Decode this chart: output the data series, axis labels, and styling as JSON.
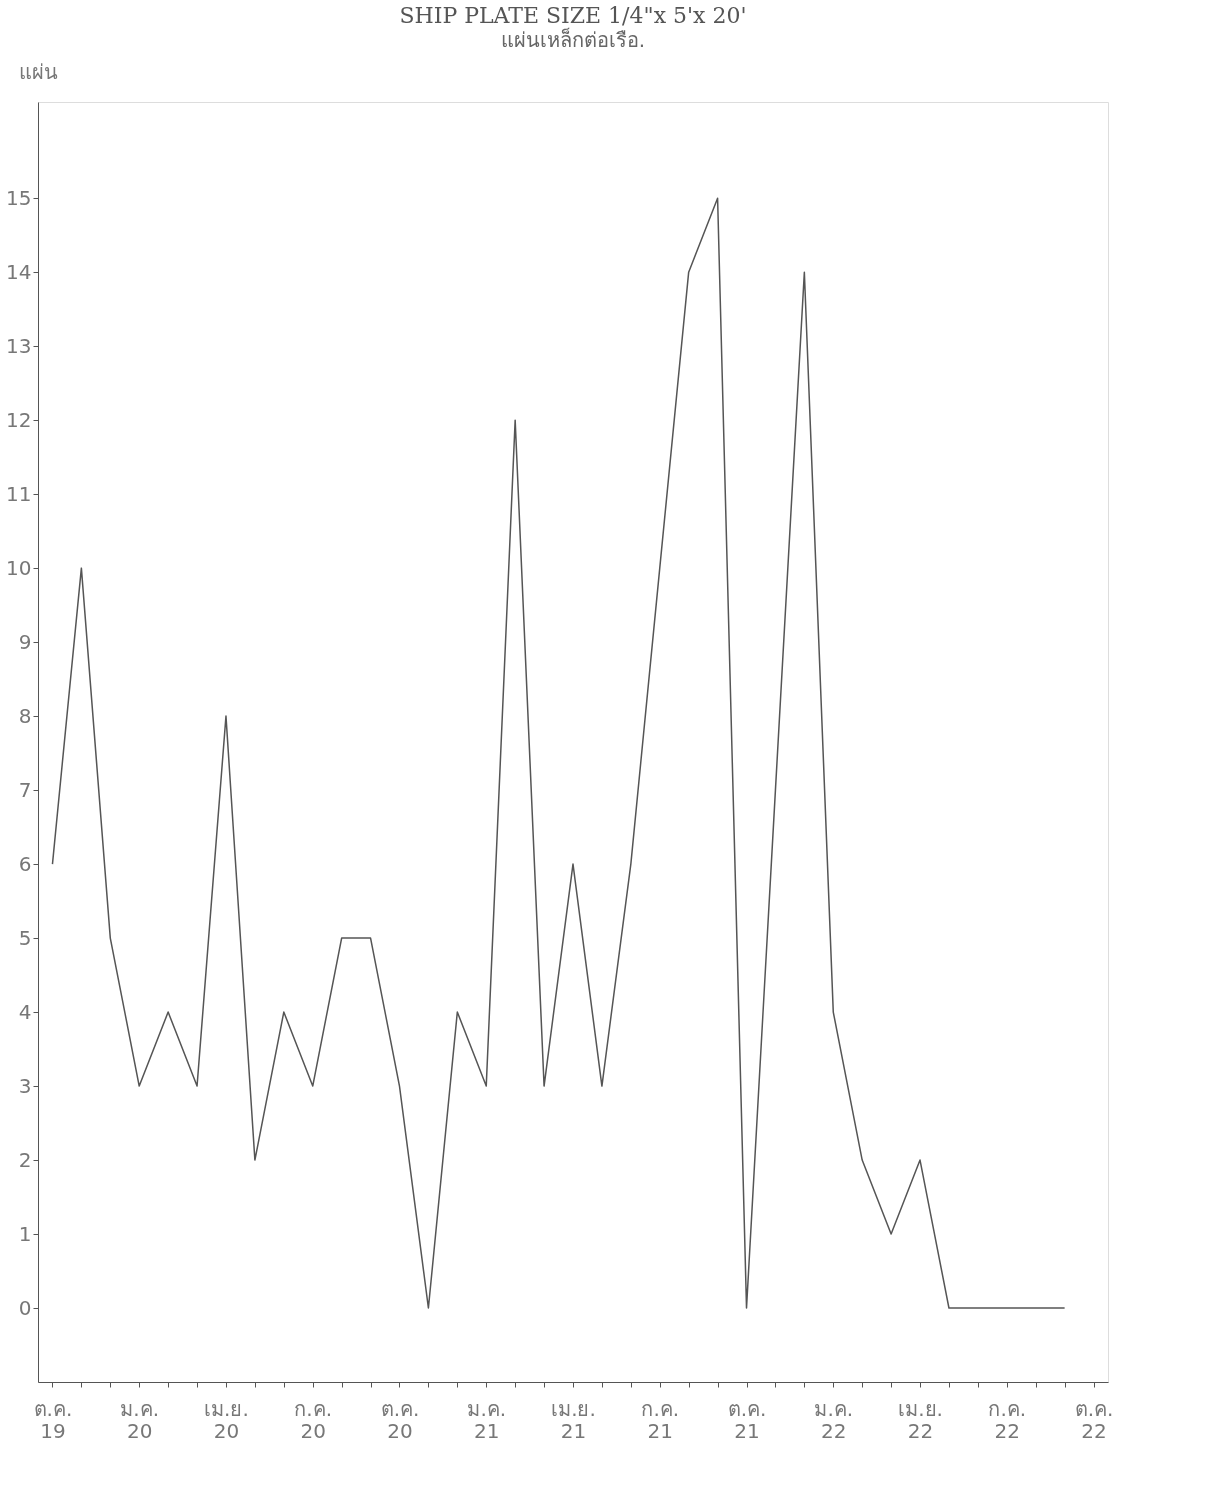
{
  "chart_data": {
    "type": "line",
    "title": "SHIP PLATE SIZE 1/4\"x 5'x 20'",
    "subtitle": "แผ่นเหล็กต่อเรือ.",
    "ylabel": "แผ่น",
    "categories": [
      "ต.ค. 19",
      null,
      null,
      "ม.ค. 20",
      null,
      null,
      "เม.ย. 20",
      null,
      null,
      "ก.ค. 20",
      null,
      null,
      "ต.ค. 20",
      null,
      null,
      "ม.ค. 21",
      null,
      null,
      "เม.ย. 21",
      null,
      null,
      "ก.ค. 21",
      null,
      null,
      "ต.ค. 21",
      null,
      null,
      "ม.ค. 22",
      null,
      null,
      "เม.ย. 22",
      null,
      null,
      "ก.ค. 22",
      null,
      null,
      "ต.ค. 22"
    ],
    "series": [
      {
        "color": "#555555",
        "values": [
          6,
          10,
          5,
          3,
          4,
          3,
          8,
          2,
          4,
          3,
          5,
          5,
          3,
          0,
          4,
          3,
          12,
          3,
          6,
          3,
          6,
          10,
          14,
          15,
          0,
          7,
          14,
          4,
          2,
          1,
          2,
          0,
          0,
          0,
          0,
          0,
          null
        ]
      }
    ],
    "ylim": [
      -1,
      16.3
    ],
    "yticks": [
      0,
      1,
      2,
      3,
      4,
      5,
      6,
      7,
      8,
      9,
      10,
      11,
      12,
      13,
      14,
      15
    ],
    "grid": false,
    "legend": false,
    "marker": "none",
    "line_style": "solid"
  }
}
